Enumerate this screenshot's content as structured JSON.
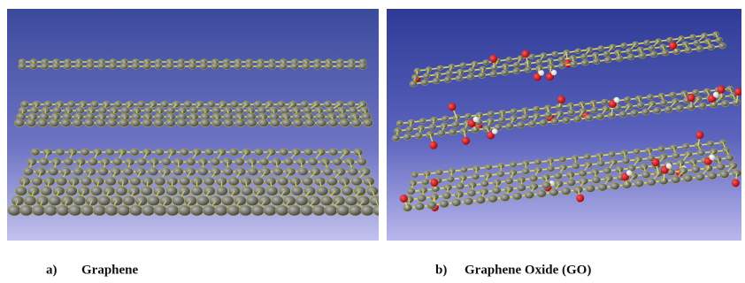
{
  "panels": [
    {
      "label": "a)",
      "caption": "Graphene"
    },
    {
      "label": "b)",
      "caption": "Graphene Oxide (GO)"
    }
  ]
}
